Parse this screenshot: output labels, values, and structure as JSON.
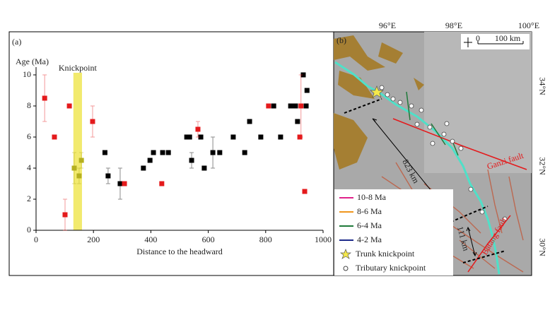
{
  "chart_data": {
    "type": "scatter",
    "panel_label": "(a)",
    "y_label": "Age (Ma)",
    "x_label": "Distance to the headward",
    "annotation": "Knickpoint",
    "band": [
      130,
      160
    ],
    "band_color": "#f2ea6e",
    "xlim": [
      0,
      1000
    ],
    "xticks": [
      0,
      200,
      400,
      600,
      800,
      1000
    ],
    "ylim": [
      0,
      10.5
    ],
    "yticks": [
      0,
      2,
      4,
      6,
      8,
      10
    ],
    "series": [
      {
        "color": "#000000",
        "x": [
          240,
          251,
          293,
          374,
          397,
          409,
          441,
          461,
          525,
          535,
          542,
          574,
          586,
          616,
          640,
          687,
          727,
          744,
          783,
          828,
          852,
          887,
          904,
          911,
          931,
          941,
          944
        ],
        "values": [
          5,
          3.5,
          3,
          4,
          4.5,
          5,
          5,
          5,
          6,
          6,
          4.5,
          6,
          4,
          5,
          5,
          6,
          5,
          7,
          6,
          8,
          6,
          8,
          8,
          7,
          10,
          8,
          9
        ],
        "errors": [
          null,
          0.5,
          1,
          null,
          null,
          null,
          null,
          null,
          null,
          null,
          0.5,
          null,
          null,
          1,
          null,
          null,
          null,
          null,
          null,
          null,
          null,
          null,
          null,
          null,
          null,
          null,
          null
        ]
      },
      {
        "color": "#e41a1c",
        "x": [
          30,
          64,
          101,
          116,
          197,
          308,
          438,
          564,
          810,
          919,
          923,
          936
        ],
        "values": [
          8.5,
          6,
          1,
          8,
          7,
          3,
          3,
          6.5,
          8,
          6,
          8,
          2.5
        ],
        "errors": [
          1.5,
          null,
          1,
          null,
          1,
          null,
          null,
          0.5,
          null,
          null,
          2,
          null
        ]
      },
      {
        "color": "#b5b020",
        "x": [
          133,
          150,
          158
        ],
        "values": [
          4,
          3.5,
          4.5
        ],
        "errors": [
          1,
          0.5,
          0.5
        ]
      }
    ]
  },
  "map": {
    "panel_label": "(b)",
    "lon_labels": [
      "96°E",
      "98°E",
      "100°E"
    ],
    "lat_labels": [
      "34°N",
      "32°N",
      "30°N"
    ],
    "scale_zero": "0",
    "scale_label": "100 km",
    "distance_long": "823 km",
    "distance_short": "111 km",
    "faults": [
      "Ganzi fault",
      "Batang fault"
    ],
    "legend": [
      "10-8 Ma",
      "8-6 Ma",
      "6-4 Ma",
      "4-2 Ma",
      "Trunk knickpoint",
      "Tributary knickpoint"
    ]
  }
}
